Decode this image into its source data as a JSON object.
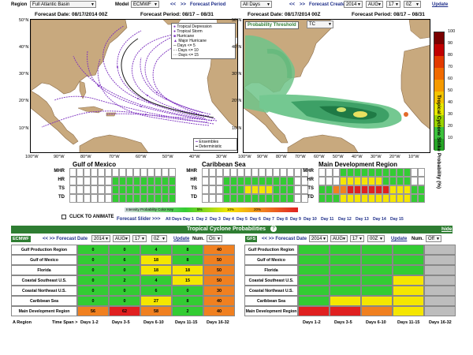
{
  "topbar": {
    "region_label": "Region",
    "region_value": "Full Atlantic Basin",
    "model_label": "Model",
    "model_value": "ECMWF",
    "fp_prev": "<<",
    "fp_next": ">>",
    "fp_label": "Forecast Period",
    "fp_value": "All Days",
    "fc_prev": "<<",
    "fc_next": ">>",
    "fc_label": "Forecast Created",
    "year": "2014",
    "month": "AUG",
    "day": "17",
    "hour": "0Z",
    "update": "Update"
  },
  "map_left": {
    "date": "Forecast Date: 08/17/2014 00Z",
    "period": "Forecast Period: 08/17 – 08/31",
    "legend": [
      "Tropical Depression",
      "Tropical Storm",
      "Hurricane",
      "Major Hurricane",
      "Days <= 5",
      "Days <= 10",
      "Days <= 15"
    ],
    "legend2": [
      "Ensembles",
      "Deterministic"
    ],
    "lat_labels": [
      "50°N",
      "40°N",
      "30°N",
      "20°N",
      "10°N"
    ],
    "lon_labels": [
      "100°W",
      "90°W",
      "80°W",
      "70°W",
      "60°W",
      "50°W",
      "40°W",
      "30°W"
    ]
  },
  "map_right": {
    "date": "Forecast Date: 08/17/2014 00Z",
    "period": "Forecast Period: 08/17 – 08/31",
    "threshold_label": "Probability Threshold",
    "threshold_value": "TC",
    "lat_labels": [
      "50°N",
      "40°N",
      "30°N",
      "20°N",
      "10°N"
    ],
    "lon_labels": [
      "100°W",
      "90°W",
      "80°W",
      "70°W",
      "60°W",
      "50°W",
      "40°W",
      "30°W",
      "20°W",
      "10°W"
    ]
  },
  "colorbar": {
    "title": "Tropical Cyclone Strike Probability (%)",
    "ticks": [
      "100",
      "90",
      "80",
      "70",
      "60",
      "50",
      "40",
      "30",
      "20",
      "10"
    ],
    "colors": [
      "#7a0000",
      "#c00000",
      "#e23a00",
      "#f06a00",
      "#f59a00",
      "#f4c400",
      "#e8e800",
      "#9bd400",
      "#3cc23c",
      "#26a626"
    ]
  },
  "strips": {
    "titles": [
      "Gulf of Mexico",
      "Caribbean Sea",
      "Main Development Region"
    ],
    "rows": [
      "MHR",
      "HR",
      "TS",
      "TD"
    ],
    "intensity_label": "Intensity Probability Color Key",
    "intensity_items": [
      "5%",
      "10%",
      "20%"
    ]
  },
  "slider": {
    "animate": "CLICK TO ANIMATE",
    "slider_label": "Forecast Slider >>>",
    "days": [
      "All Days",
      "Day 1",
      "Day 2",
      "Day 3",
      "Day 4",
      "Day 5",
      "Day 6",
      "Day 7",
      "Day 8",
      "Day 9",
      "Day 10",
      "Day 11",
      "Day 12",
      "Day 13",
      "Day 14",
      "Day 15"
    ]
  },
  "probs": {
    "title": "Tropical Cyclone Probabilities",
    "hide": "hide",
    "left": {
      "model": "ECMWF",
      "nav": "<< >> Forecast Date",
      "year": "2014",
      "month": "AUG",
      "day": "17",
      "hour": "0Z",
      "update": "Update",
      "num": "Num.",
      "num_value": "On",
      "rows": [
        {
          "label": "Gulf Production Region",
          "values": [
            "0",
            "0",
            "4",
            "8",
            "40"
          ]
        },
        {
          "label": "Gulf of Mexico",
          "values": [
            "0",
            "6",
            "18",
            "8",
            "50"
          ]
        },
        {
          "label": "Florida",
          "values": [
            "0",
            "0",
            "18",
            "18",
            "50"
          ]
        },
        {
          "label": "Coastal Southeast U.S.",
          "values": [
            "0",
            "2",
            "4",
            "15",
            "50"
          ]
        },
        {
          "label": "Coastal Northeast U.S.",
          "values": [
            "0",
            "0",
            "6",
            "0",
            "30"
          ]
        },
        {
          "label": "Caribbean Sea",
          "values": [
            "0",
            "0",
            "27",
            "8",
            "40"
          ]
        },
        {
          "label": "Main Development Region",
          "values": [
            "56",
            "62",
            "58",
            "2",
            "40"
          ]
        }
      ],
      "colors": [
        [
          "#33cc33",
          "#33cc33",
          "#33cc33",
          "#33cc33",
          "#f08020"
        ],
        [
          "#33cc33",
          "#33cc33",
          "#f5e600",
          "#33cc33",
          "#f08020"
        ],
        [
          "#33cc33",
          "#33cc33",
          "#f5e600",
          "#f5e600",
          "#f08020"
        ],
        [
          "#33cc33",
          "#33cc33",
          "#33cc33",
          "#f5e600",
          "#f08020"
        ],
        [
          "#33cc33",
          "#33cc33",
          "#33cc33",
          "#33cc33",
          "#f08020"
        ],
        [
          "#33cc33",
          "#33cc33",
          "#f5e600",
          "#33cc33",
          "#f08020"
        ],
        [
          "#f08020",
          "#e02020",
          "#f08020",
          "#33cc33",
          "#f08020"
        ]
      ]
    },
    "right": {
      "model": "GFS",
      "nav": "<< >> Forecast Date",
      "year": "2014",
      "month": "AUG",
      "day": "17",
      "hour": "00Z",
      "update": "Update",
      "num": "Num.",
      "num_value": "Off",
      "rows": [
        {
          "label": "Gulf Production Region"
        },
        {
          "label": "Gulf of Mexico"
        },
        {
          "label": "Florida"
        },
        {
          "label": "Coastal Southeast U.S."
        },
        {
          "label": "Coastal Northeast U.S."
        },
        {
          "label": "Caribbean Sea"
        },
        {
          "label": "Main Development Region"
        }
      ],
      "colors": [
        [
          "#33cc33",
          "#33cc33",
          "#33cc33",
          "#33cc33",
          "#bdbdbd"
        ],
        [
          "#33cc33",
          "#33cc33",
          "#33cc33",
          "#33cc33",
          "#bdbdbd"
        ],
        [
          "#33cc33",
          "#33cc33",
          "#33cc33",
          "#33cc33",
          "#bdbdbd"
        ],
        [
          "#33cc33",
          "#33cc33",
          "#33cc33",
          "#f5e600",
          "#bdbdbd"
        ],
        [
          "#33cc33",
          "#33cc33",
          "#33cc33",
          "#f5e600",
          "#bdbdbd"
        ],
        [
          "#33cc33",
          "#f5e600",
          "#f5e600",
          "#f5e600",
          "#bdbdbd"
        ],
        [
          "#e02020",
          "#e02020",
          "#f08020",
          "#f5e600",
          "#bdbdbd"
        ]
      ]
    },
    "footer_left": [
      "A Region",
      "Time Span >",
      "Days 1-2",
      "Days 3-5",
      "Days 6-10",
      "Days 11-15",
      "Days 16-32"
    ],
    "footer_right": [
      "Days 1-2",
      "Days 3-5",
      "Days 6-10",
      "Days 11-15",
      "Days 16-32"
    ]
  }
}
